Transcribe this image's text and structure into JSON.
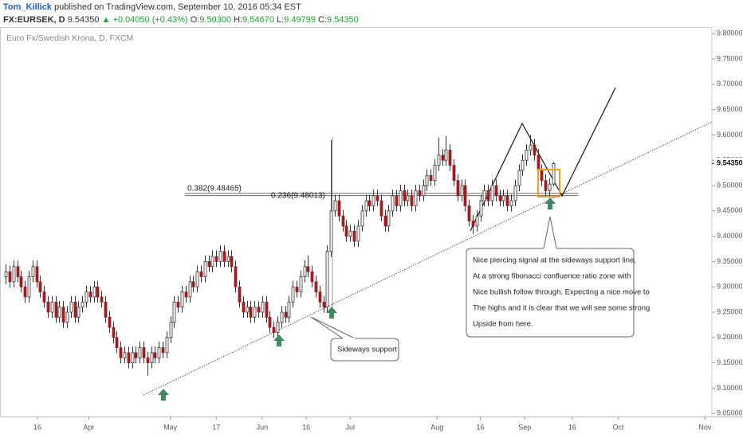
{
  "header": {
    "author": "Tom_Killick",
    "published": "published on TradingView.com, September 10, 2016 05:34 EST",
    "symbol": "FX:EURSEK, D",
    "last": "9.54350",
    "change": "+0.04050 (+0.43%)",
    "fields": [
      {
        "label": "O:",
        "value": "9.50300"
      },
      {
        "label": "H:",
        "value": "9.54670"
      },
      {
        "label": "L:",
        "value": "9.49799"
      },
      {
        "label": "C:",
        "value": "9.54350"
      }
    ]
  },
  "chart_data": {
    "type": "candlestick",
    "subtitle": "Euro Fx/Swedish Krona, D, FXCM",
    "up_color": "#ffffff",
    "down_color": "#9c1f1f",
    "outline_color": "#333333",
    "ylim": [
      9.044,
      9.813
    ],
    "xlim": [
      -1.5,
      184.5
    ],
    "yticks": [
      {
        "value": 9.05,
        "label": "9.05000"
      },
      {
        "value": 9.1,
        "label": "9.10000"
      },
      {
        "value": 9.15,
        "label": "9.15000"
      },
      {
        "value": 9.2,
        "label": "9.20000"
      },
      {
        "value": 9.25,
        "label": "9.25000"
      },
      {
        "value": 9.3,
        "label": "9.30000"
      },
      {
        "value": 9.35,
        "label": "9.35000"
      },
      {
        "value": 9.4,
        "label": "9.40000"
      },
      {
        "value": 9.45,
        "label": "9.45000"
      },
      {
        "value": 9.5,
        "label": "9.50000"
      },
      {
        "value": 9.55,
        "label": "9.55000"
      },
      {
        "value": 9.6,
        "label": "9.60000"
      },
      {
        "value": 9.65,
        "label": "9.65000"
      },
      {
        "value": 9.7,
        "label": "9.70000"
      },
      {
        "value": 9.75,
        "label": "9.75000"
      },
      {
        "value": 9.8,
        "label": "9.80000"
      }
    ],
    "xticks": [
      {
        "value": 8.3,
        "label": "16"
      },
      {
        "value": 21.7,
        "label": "Apr"
      },
      {
        "value": 43,
        "label": "May"
      },
      {
        "value": 55,
        "label": "17"
      },
      {
        "value": 67,
        "label": "Jun"
      },
      {
        "value": 78.5,
        "label": "16"
      },
      {
        "value": 90,
        "label": "Jul"
      },
      {
        "value": 112.7,
        "label": "Aug"
      },
      {
        "value": 124,
        "label": "16"
      },
      {
        "value": 135.6,
        "label": "Sep"
      },
      {
        "value": 148,
        "label": "16"
      },
      {
        "value": 160,
        "label": "Oct"
      },
      {
        "value": 182.7,
        "label": "Nov"
      }
    ],
    "last_price": {
      "value": 9.5435,
      "label": "9.54350"
    },
    "fib_levels": [
      {
        "value": 9.48465,
        "label": "0.382(9.48465)"
      },
      {
        "value": 9.48013,
        "label": "0.236(9.48013)"
      }
    ],
    "callouts": [
      {
        "lines": [
          "Sideways support"
        ]
      },
      {
        "lines": [
          "Nice piercing signal at the sideways support line,",
          "At a strong fibonacci confluence ratio zone with",
          "Nice bullish follow through. Expecting a nice move to",
          "The highs and it is clear that we will see some strong",
          "Upside from here."
        ]
      }
    ],
    "candles": [
      [
        9.32,
        9.345,
        9.305,
        9.33
      ],
      [
        9.33,
        9.342,
        9.299,
        9.31
      ],
      [
        9.31,
        9.352,
        9.299,
        9.34
      ],
      [
        9.34,
        9.352,
        9.309,
        9.32
      ],
      [
        9.32,
        9.332,
        9.289,
        9.3
      ],
      [
        9.3,
        9.312,
        9.269,
        9.28
      ],
      [
        9.28,
        9.332,
        9.269,
        9.32
      ],
      [
        9.32,
        9.352,
        9.309,
        9.34
      ],
      [
        9.34,
        9.352,
        9.299,
        9.31
      ],
      [
        9.31,
        9.322,
        9.279,
        9.29
      ],
      [
        9.29,
        9.302,
        9.259,
        9.27
      ],
      [
        9.27,
        9.282,
        9.239,
        9.25
      ],
      [
        9.25,
        9.282,
        9.239,
        9.27
      ],
      [
        9.27,
        9.282,
        9.229,
        9.24
      ],
      [
        9.24,
        9.272,
        9.229,
        9.26
      ],
      [
        9.26,
        9.272,
        9.219,
        9.23
      ],
      [
        9.23,
        9.262,
        9.219,
        9.25
      ],
      [
        9.25,
        9.282,
        9.239,
        9.27
      ],
      [
        9.27,
        9.282,
        9.229,
        9.24
      ],
      [
        9.24,
        9.272,
        9.229,
        9.26
      ],
      [
        9.26,
        9.282,
        9.249,
        9.27
      ],
      [
        9.27,
        9.302,
        9.259,
        9.29
      ],
      [
        9.29,
        9.302,
        9.269,
        9.28
      ],
      [
        9.28,
        9.312,
        9.269,
        9.3
      ],
      [
        9.3,
        9.312,
        9.269,
        9.28
      ],
      [
        9.28,
        9.292,
        9.259,
        9.27
      ],
      [
        9.27,
        9.282,
        9.229,
        9.24
      ],
      [
        9.24,
        9.252,
        9.209,
        9.22
      ],
      [
        9.22,
        9.232,
        9.189,
        9.2
      ],
      [
        9.2,
        9.212,
        9.169,
        9.18
      ],
      [
        9.18,
        9.192,
        9.149,
        9.16
      ],
      [
        9.16,
        9.182,
        9.149,
        9.17
      ],
      [
        9.17,
        9.182,
        9.139,
        9.15
      ],
      [
        9.15,
        9.182,
        9.139,
        9.17
      ],
      [
        9.17,
        9.182,
        9.149,
        9.16
      ],
      [
        9.16,
        9.192,
        9.149,
        9.18
      ],
      [
        9.18,
        9.192,
        9.149,
        9.16
      ],
      [
        9.16,
        9.172,
        9.125,
        9.15
      ],
      [
        9.15,
        9.182,
        9.139,
        9.17
      ],
      [
        9.17,
        9.182,
        9.149,
        9.16
      ],
      [
        9.16,
        9.192,
        9.149,
        9.18
      ],
      [
        9.18,
        9.192,
        9.159,
        9.17
      ],
      [
        9.17,
        9.212,
        9.159,
        9.2
      ],
      [
        9.2,
        9.242,
        9.189,
        9.23
      ],
      [
        9.23,
        9.282,
        9.219,
        9.27
      ],
      [
        9.27,
        9.282,
        9.249,
        9.26
      ],
      [
        9.26,
        9.302,
        9.249,
        9.29
      ],
      [
        9.29,
        9.302,
        9.269,
        9.28
      ],
      [
        9.28,
        9.322,
        9.269,
        9.31
      ],
      [
        9.31,
        9.322,
        9.289,
        9.3
      ],
      [
        9.3,
        9.342,
        9.289,
        9.33
      ],
      [
        9.33,
        9.342,
        9.309,
        9.32
      ],
      [
        9.32,
        9.362,
        9.309,
        9.35
      ],
      [
        9.35,
        9.362,
        9.329,
        9.34
      ],
      [
        9.34,
        9.372,
        9.329,
        9.36
      ],
      [
        9.36,
        9.372,
        9.339,
        9.35
      ],
      [
        9.35,
        9.382,
        9.339,
        9.37
      ],
      [
        9.37,
        9.382,
        9.339,
        9.35
      ],
      [
        9.35,
        9.372,
        9.339,
        9.36
      ],
      [
        9.36,
        9.372,
        9.329,
        9.34
      ],
      [
        9.34,
        9.352,
        9.289,
        9.3
      ],
      [
        9.3,
        9.312,
        9.259,
        9.27
      ],
      [
        9.27,
        9.282,
        9.239,
        9.25
      ],
      [
        9.25,
        9.272,
        9.239,
        9.26
      ],
      [
        9.26,
        9.272,
        9.229,
        9.24
      ],
      [
        9.24,
        9.272,
        9.229,
        9.26
      ],
      [
        9.26,
        9.272,
        9.239,
        9.25
      ],
      [
        9.25,
        9.282,
        9.239,
        9.27
      ],
      [
        9.27,
        9.282,
        9.229,
        9.24
      ],
      [
        9.24,
        9.252,
        9.209,
        9.22
      ],
      [
        9.22,
        9.232,
        9.199,
        9.21
      ],
      [
        9.21,
        9.242,
        9.199,
        9.23
      ],
      [
        9.23,
        9.262,
        9.219,
        9.25
      ],
      [
        9.25,
        9.262,
        9.229,
        9.24
      ],
      [
        9.24,
        9.282,
        9.229,
        9.27
      ],
      [
        9.27,
        9.312,
        9.259,
        9.3
      ],
      [
        9.3,
        9.312,
        9.279,
        9.29
      ],
      [
        9.29,
        9.332,
        9.279,
        9.32
      ],
      [
        9.32,
        9.352,
        9.309,
        9.34
      ],
      [
        9.34,
        9.362,
        9.319,
        9.33
      ],
      [
        9.33,
        9.342,
        9.299,
        9.31
      ],
      [
        9.31,
        9.322,
        9.279,
        9.29
      ],
      [
        9.29,
        9.302,
        9.259,
        9.27
      ],
      [
        9.27,
        9.282,
        9.249,
        9.26
      ],
      [
        9.26,
        9.382,
        9.249,
        9.37
      ],
      [
        9.37,
        9.59,
        9.359,
        9.45
      ],
      [
        9.45,
        9.482,
        9.439,
        9.47
      ],
      [
        9.47,
        9.482,
        9.429,
        9.44
      ],
      [
        9.44,
        9.452,
        9.409,
        9.42
      ],
      [
        9.42,
        9.432,
        9.389,
        9.4
      ],
      [
        9.4,
        9.422,
        9.389,
        9.41
      ],
      [
        9.41,
        9.422,
        9.379,
        9.39
      ],
      [
        9.39,
        9.432,
        9.379,
        9.42
      ],
      [
        9.42,
        9.462,
        9.409,
        9.45
      ],
      [
        9.45,
        9.482,
        9.439,
        9.47
      ],
      [
        9.47,
        9.482,
        9.449,
        9.46
      ],
      [
        9.46,
        9.492,
        9.449,
        9.48
      ],
      [
        9.48,
        9.492,
        9.459,
        9.47
      ],
      [
        9.47,
        9.482,
        9.429,
        9.44
      ],
      [
        9.44,
        9.452,
        9.409,
        9.42
      ],
      [
        9.42,
        9.462,
        9.409,
        9.45
      ],
      [
        9.45,
        9.492,
        9.439,
        9.48
      ],
      [
        9.48,
        9.492,
        9.449,
        9.46
      ],
      [
        9.46,
        9.502,
        9.449,
        9.49
      ],
      [
        9.49,
        9.502,
        9.459,
        9.47
      ],
      [
        9.47,
        9.492,
        9.459,
        9.48
      ],
      [
        9.48,
        9.492,
        9.449,
        9.46
      ],
      [
        9.46,
        9.502,
        9.449,
        9.49
      ],
      [
        9.49,
        9.502,
        9.469,
        9.48
      ],
      [
        9.48,
        9.512,
        9.469,
        9.5
      ],
      [
        9.5,
        9.532,
        9.489,
        9.52
      ],
      [
        9.52,
        9.532,
        9.499,
        9.51
      ],
      [
        9.51,
        9.552,
        9.499,
        9.54
      ],
      [
        9.54,
        9.595,
        9.529,
        9.56
      ],
      [
        9.56,
        9.572,
        9.539,
        9.55
      ],
      [
        9.55,
        9.598,
        9.539,
        9.57
      ],
      [
        9.57,
        9.582,
        9.529,
        9.54
      ],
      [
        9.54,
        9.552,
        9.499,
        9.51
      ],
      [
        9.51,
        9.522,
        9.469,
        9.48
      ],
      [
        9.48,
        9.512,
        9.469,
        9.5
      ],
      [
        9.5,
        9.512,
        9.449,
        9.46
      ],
      [
        9.46,
        9.472,
        9.419,
        9.43
      ],
      [
        9.43,
        9.442,
        9.405,
        9.42
      ],
      [
        9.42,
        9.452,
        9.409,
        9.44
      ],
      [
        9.44,
        9.482,
        9.429,
        9.47
      ],
      [
        9.47,
        9.502,
        9.459,
        9.49
      ],
      [
        9.49,
        9.502,
        9.459,
        9.47
      ],
      [
        9.47,
        9.512,
        9.459,
        9.5
      ],
      [
        9.5,
        9.512,
        9.469,
        9.48
      ],
      [
        9.48,
        9.492,
        9.459,
        9.47
      ],
      [
        9.47,
        9.492,
        9.459,
        9.48
      ],
      [
        9.48,
        9.492,
        9.449,
        9.46
      ],
      [
        9.46,
        9.482,
        9.449,
        9.47
      ],
      [
        9.47,
        9.512,
        9.459,
        9.5
      ],
      [
        9.5,
        9.542,
        9.489,
        9.53
      ],
      [
        9.53,
        9.562,
        9.519,
        9.55
      ],
      [
        9.55,
        9.582,
        9.539,
        9.57
      ],
      [
        9.57,
        9.6,
        9.559,
        9.58
      ],
      [
        9.58,
        9.592,
        9.549,
        9.56
      ],
      [
        9.56,
        9.572,
        9.519,
        9.53
      ],
      [
        9.53,
        9.542,
        9.499,
        9.51
      ],
      [
        9.51,
        9.522,
        9.479,
        9.49
      ],
      [
        9.49,
        9.515,
        9.479,
        9.503
      ],
      [
        9.503,
        9.5467,
        9.49799,
        9.5435
      ]
    ]
  }
}
